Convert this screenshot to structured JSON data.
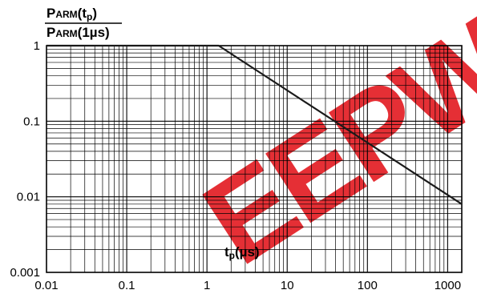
{
  "chart_data": {
    "type": "line",
    "ylabel_numerator": "PARM(tp)",
    "ylabel_denominator": "PARM(1µs)",
    "ylabel_num_main": "P",
    "ylabel_num_sub": "ARM",
    "ylabel_num_tail": "(t",
    "ylabel_num_tail_sub": "p",
    "ylabel_num_close": ")",
    "ylabel_den_main": "P",
    "ylabel_den_sub": "ARM",
    "ylabel_den_tail": "(1µs)",
    "xlabel_main": "t",
    "xlabel_sub": "p",
    "xlabel_tail": "(µs)",
    "x_scale": "log",
    "y_scale": "log",
    "xlim": [
      0.01,
      1500
    ],
    "ylim": [
      0.001,
      1
    ],
    "grid": true,
    "x_ticks": [
      0.01,
      0.1,
      1,
      10,
      100,
      1000
    ],
    "x_tick_labels": [
      "0.01",
      "0.1",
      "1",
      "10",
      "100",
      "1000"
    ],
    "y_ticks": [
      0.001,
      0.01,
      0.1,
      1
    ],
    "y_tick_labels": [
      "0.001",
      "0.01",
      "0.1",
      "1"
    ],
    "series": [
      {
        "x": [
          0.01,
          1.4,
          1500
        ],
        "y": [
          1,
          1,
          0.008
        ]
      }
    ],
    "watermark": "EEPW",
    "watermark_color": "#e31e24",
    "line_color": "#1a1a1a",
    "grid_color": "#000000"
  }
}
